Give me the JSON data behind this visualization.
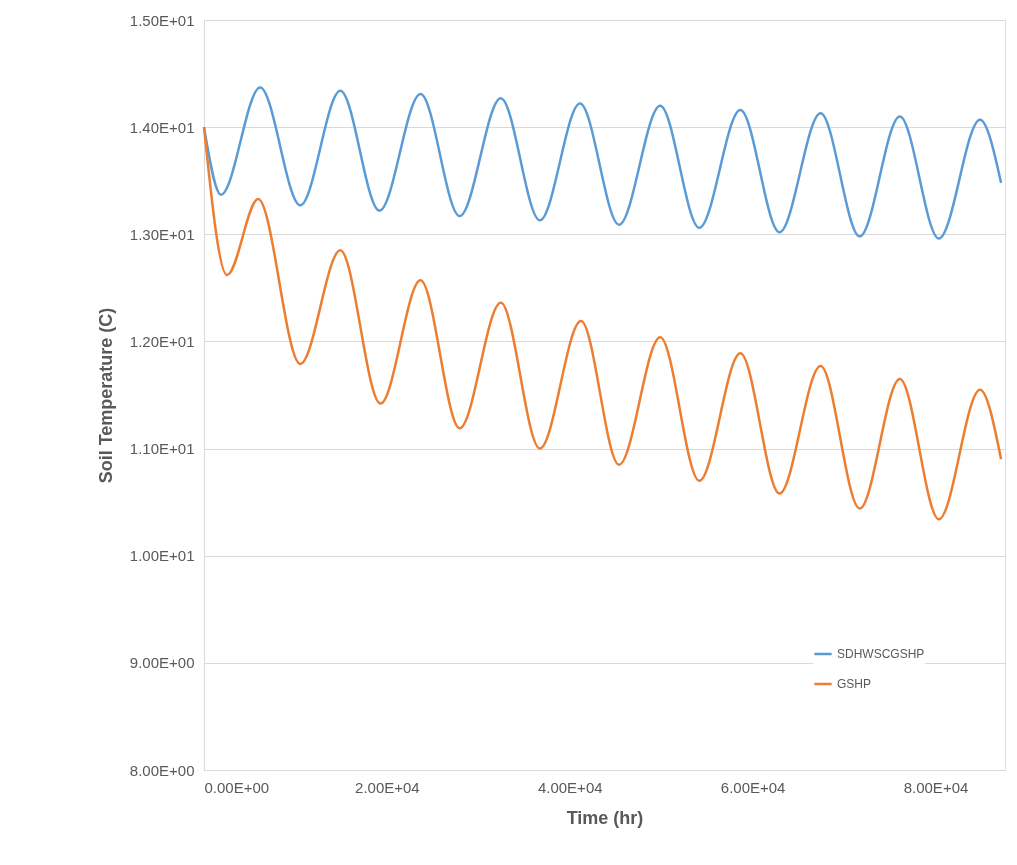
{
  "chart_data": {
    "type": "line",
    "xlabel": "Time (hr)",
    "ylabel": "Soil Temperature (C)",
    "xlim": [
      0,
      87600
    ],
    "ylim": [
      8,
      15
    ],
    "xticks": [
      {
        "value": 0,
        "label": "0.00E+00"
      },
      {
        "value": 20000,
        "label": "2.00E+04"
      },
      {
        "value": 40000,
        "label": "4.00E+04"
      },
      {
        "value": 60000,
        "label": "6.00E+04"
      },
      {
        "value": 80000,
        "label": "8.00E+04"
      }
    ],
    "yticks": [
      {
        "value": 8,
        "label": "8.00E+00"
      },
      {
        "value": 9,
        "label": "9.00E+00"
      },
      {
        "value": 10,
        "label": "1.00E+01"
      },
      {
        "value": 11,
        "label": "1.10E+01"
      },
      {
        "value": 12,
        "label": "1.20E+01"
      },
      {
        "value": 13,
        "label": "1.30E+01"
      },
      {
        "value": 14,
        "label": "1.40E+01"
      },
      {
        "value": 15,
        "label": "1.50E+01"
      }
    ],
    "grid": "y",
    "legend": "bottom right",
    "marker": "none",
    "line_style": "solid",
    "series": [
      {
        "name": "SDHWSCGSHP",
        "color": "#5b9bd5",
        "x": [
          0,
          1860,
          6140,
          10530,
          14910,
          19190,
          23680,
          27960,
          32460,
          36730,
          41120,
          45390,
          49890,
          54170,
          58660,
          62940,
          67430,
          71710,
          76100,
          80370,
          84870,
          87170
        ],
        "values": [
          14.0,
          13.37,
          14.37,
          13.27,
          14.34,
          13.22,
          14.31,
          13.17,
          14.27,
          13.13,
          14.22,
          13.09,
          14.2,
          13.06,
          14.16,
          13.02,
          14.13,
          12.98,
          14.1,
          12.96,
          14.07,
          13.48
        ]
      },
      {
        "name": "GSHP",
        "color": "#ed7d31",
        "x": [
          0,
          2520,
          5920,
          10530,
          14910,
          19300,
          23680,
          27960,
          32460,
          36730,
          41230,
          45390,
          49890,
          54170,
          58660,
          62940,
          67430,
          71710,
          76100,
          80370,
          84870,
          87170
        ],
        "values": [
          14.0,
          12.62,
          13.33,
          11.79,
          12.85,
          11.42,
          12.57,
          11.19,
          12.36,
          11.0,
          12.19,
          10.85,
          12.04,
          10.7,
          11.89,
          10.58,
          11.77,
          10.44,
          11.65,
          10.34,
          11.55,
          10.9
        ]
      }
    ]
  }
}
